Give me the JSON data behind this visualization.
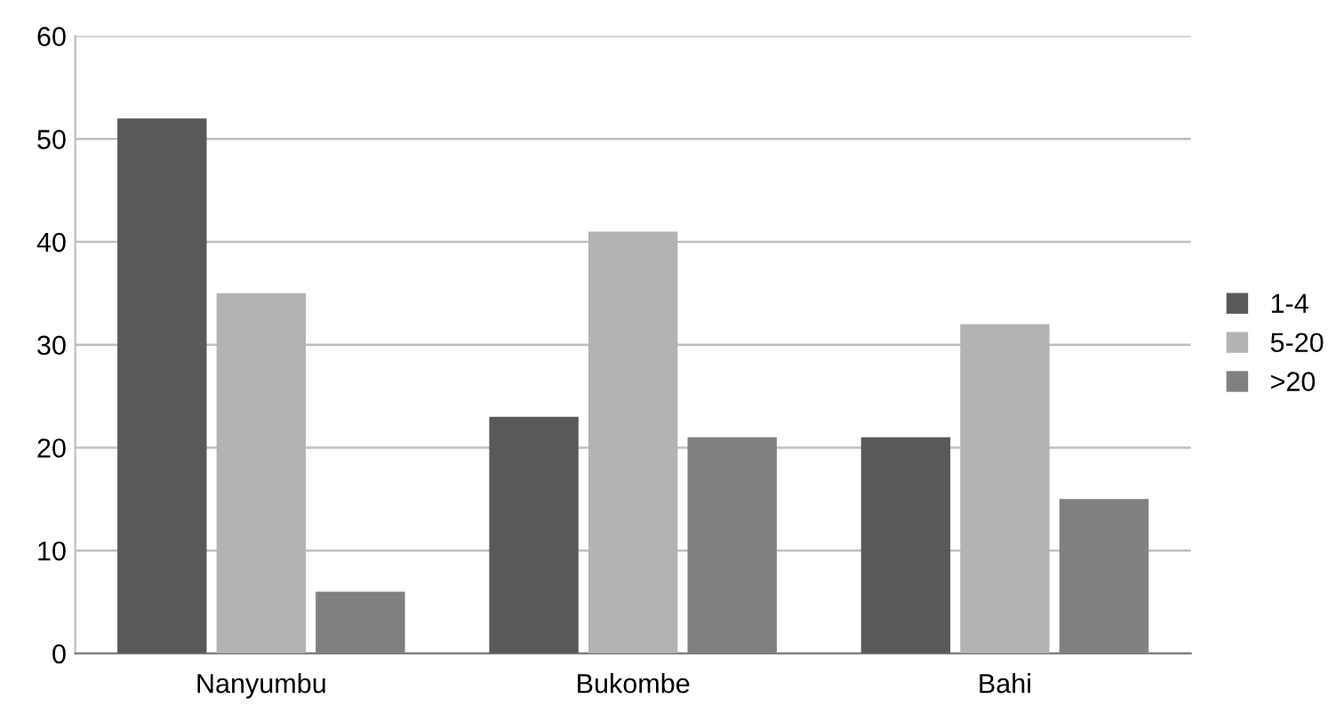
{
  "chart_data": {
    "type": "bar",
    "categories": [
      "Nanyumbu",
      "Bukombe",
      "Bahi"
    ],
    "series": [
      {
        "name": "1-4",
        "color": "#595959",
        "values": [
          52,
          23,
          21
        ]
      },
      {
        "name": "5-20",
        "color": "#b3b3b3",
        "values": [
          35,
          41,
          32
        ]
      },
      {
        "name": ">20",
        "color": "#808080",
        "values": [
          6,
          21,
          15
        ]
      }
    ],
    "ylim": [
      0,
      60
    ],
    "yticks": [
      0,
      10,
      20,
      30,
      40,
      50,
      60
    ],
    "grid": "y",
    "legend": "right"
  }
}
